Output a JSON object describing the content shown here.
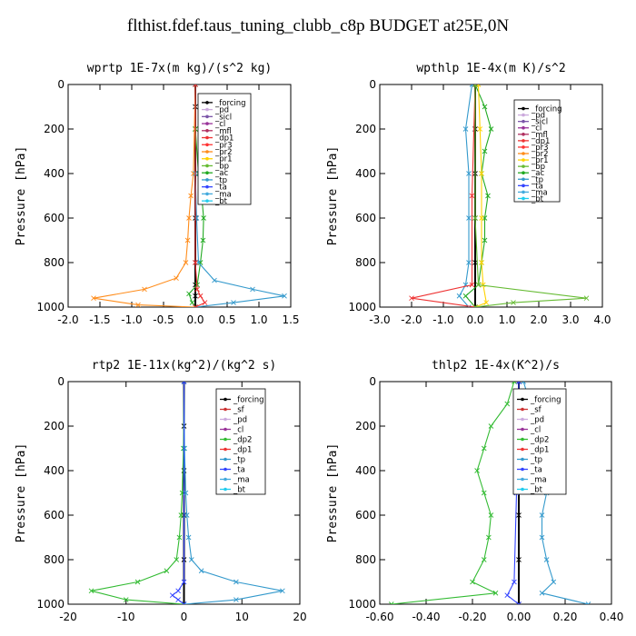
{
  "suptitle": "flthist.fdef.taus_tuning_clubb_c8p  BUDGET at25E,0N",
  "colors": {
    "_forcing": "#000000",
    "_pd": "#ccaadd",
    "_sicl": "#7b55a8",
    "_cl": "#993399",
    "_mfl": "#b03060",
    "_dp1": "#ee3333",
    "_dp2": "#33bb33",
    "_pr3": "#ff3333",
    "_pr2": "#ff8c1a",
    "_pr1": "#ffd200",
    "_bp": "#66bb33",
    "_ac": "#22aa22",
    "_tp": "#3399cc",
    "_ta": "#3344ff",
    "_ma": "#44aadd",
    "_bt": "#22ccee",
    "_sf": "#cc3333"
  },
  "chart_data": [
    {
      "type": "line",
      "title": "wprtp  1E-7x(m kg)/(s^2 kg)",
      "ylabel": "Pressure [hPa]",
      "xlim": [
        -2.0,
        1.5
      ],
      "ylim": [
        1000,
        0
      ],
      "xticks": [
        -2.0,
        -1.5,
        -1.0,
        -0.5,
        0.0,
        0.5,
        1.0,
        1.5
      ],
      "xtick_labels": [
        "-2.0",
        "-1.5",
        "-1.0",
        "-0.5",
        "0.0",
        "0.5",
        "1.0",
        "1.5"
      ],
      "yticks": [
        0,
        200,
        400,
        600,
        800,
        1000
      ],
      "ytick_labels": [
        "0",
        "200",
        "400",
        "600",
        "800",
        "1000"
      ],
      "legend": [
        "_forcing",
        "_pd",
        "_sicl",
        "_cl",
        "_mfl",
        "_dp1",
        "_pr3",
        "_pr2",
        "_pr1",
        "_bp",
        "_ac",
        "_tp",
        "_ta",
        "_ma",
        "_bt"
      ],
      "series": [
        {
          "name": "_forcing",
          "y": [
            0,
            100,
            200,
            400,
            600,
            800,
            900,
            950,
            1000
          ],
          "x": [
            0,
            0,
            0,
            0,
            0,
            0,
            0,
            0,
            0
          ]
        },
        {
          "name": "_ac",
          "y": [
            0,
            200,
            400,
            500,
            600,
            700,
            800,
            900,
            940,
            980,
            1000
          ],
          "x": [
            0,
            0,
            0.05,
            0.1,
            0.13,
            0.12,
            0.08,
            0.03,
            -0.1,
            -0.05,
            0
          ]
        },
        {
          "name": "_pr2",
          "y": [
            0,
            400,
            500,
            600,
            700,
            800,
            870,
            920,
            960,
            990,
            1000
          ],
          "x": [
            0,
            -0.03,
            -0.07,
            -0.1,
            -0.12,
            -0.15,
            -0.3,
            -0.8,
            -1.6,
            -0.9,
            0
          ]
        },
        {
          "name": "_tp",
          "y": [
            0,
            400,
            600,
            800,
            880,
            920,
            950,
            980,
            1000
          ],
          "x": [
            0,
            0,
            0.02,
            0.05,
            0.3,
            0.9,
            1.4,
            0.6,
            0
          ]
        },
        {
          "name": "_dp1",
          "y": [
            0,
            800,
            920,
            950,
            980,
            1000
          ],
          "x": [
            0,
            0,
            0.03,
            0.08,
            0.15,
            0
          ]
        }
      ]
    },
    {
      "type": "line",
      "title": "wpthlp  1E-4x(m K)/s^2",
      "ylabel": "Pressure [hPa]",
      "xlim": [
        -3.0,
        4.0
      ],
      "ylim": [
        1000,
        0
      ],
      "xticks": [
        -3.0,
        -2.0,
        -1.0,
        0.0,
        1.0,
        2.0,
        3.0,
        4.0
      ],
      "xtick_labels": [
        "-3.0",
        "-2.0",
        "-1.0",
        "0.0",
        "1.0",
        "2.0",
        "3.0",
        "4.0"
      ],
      "yticks": [
        0,
        200,
        400,
        600,
        800,
        1000
      ],
      "ytick_labels": [
        "0",
        "200",
        "400",
        "600",
        "800",
        "1000"
      ],
      "legend": [
        "_forcing",
        "_pd",
        "_sicl",
        "_cl",
        "_mfl",
        "_dp1",
        "_pr3",
        "_pr2",
        "_pr1",
        "_bp",
        "_ac",
        "_tp",
        "_ta",
        "_ma",
        "_bt"
      ],
      "series": [
        {
          "name": "_forcing",
          "y": [
            0,
            200,
            400,
            600,
            800,
            1000
          ],
          "x": [
            0,
            0,
            0,
            0,
            0,
            0
          ]
        },
        {
          "name": "_ac",
          "y": [
            0,
            100,
            200,
            300,
            400,
            500,
            600,
            700,
            800,
            900,
            950,
            1000
          ],
          "x": [
            0,
            0.3,
            0.5,
            0.3,
            0.2,
            0.4,
            0.3,
            0.3,
            0.2,
            0.1,
            -0.3,
            0
          ]
        },
        {
          "name": "_tp",
          "y": [
            0,
            200,
            400,
            600,
            800,
            900,
            950,
            1000
          ],
          "x": [
            -0.1,
            -0.3,
            -0.2,
            -0.2,
            -0.2,
            -0.3,
            -0.5,
            -0.2
          ]
        },
        {
          "name": "_pr1",
          "y": [
            0,
            200,
            400,
            600,
            800,
            900,
            980,
            1000
          ],
          "x": [
            0.1,
            0.15,
            0.2,
            0.2,
            0.2,
            0.25,
            0.35,
            0
          ]
        },
        {
          "name": "_dp1",
          "y": [
            0,
            500,
            900,
            960,
            1000
          ],
          "x": [
            0,
            -0.1,
            -0.1,
            -2.0,
            0
          ]
        },
        {
          "name": "_bp",
          "y": [
            0,
            600,
            900,
            960,
            980,
            1000
          ],
          "x": [
            0,
            0,
            0.1,
            3.5,
            1.2,
            0
          ]
        }
      ]
    },
    {
      "type": "line",
      "title": "rtp2  1E-11x(kg^2)/(kg^2 s)",
      "ylabel": "Pressure [hPa]",
      "xlim": [
        -20,
        20
      ],
      "ylim": [
        1000,
        0
      ],
      "xticks": [
        -20,
        -10,
        0,
        10,
        20
      ],
      "xtick_labels": [
        "-20",
        "-10",
        "0",
        "10",
        "20"
      ],
      "yticks": [
        0,
        200,
        400,
        600,
        800,
        1000
      ],
      "ytick_labels": [
        "0",
        "200",
        "400",
        "600",
        "800",
        "1000"
      ],
      "legend": [
        "_forcing",
        "_sf",
        "_pd",
        "_cl",
        "_dp2",
        "_dp1",
        "_tp",
        "_ta",
        "_ma",
        "_bt"
      ],
      "series": [
        {
          "name": "_forcing",
          "y": [
            0,
            200,
            400,
            600,
            800,
            1000
          ],
          "x": [
            0,
            0,
            0,
            0,
            0,
            0
          ]
        },
        {
          "name": "_dp2",
          "y": [
            0,
            300,
            500,
            600,
            700,
            800,
            850,
            900,
            940,
            980,
            1000
          ],
          "x": [
            0,
            -0.1,
            -0.3,
            -0.5,
            -0.8,
            -1.3,
            -3,
            -8,
            -16,
            -10,
            0
          ]
        },
        {
          "name": "_tp",
          "y": [
            0,
            300,
            500,
            600,
            700,
            800,
            850,
            900,
            940,
            980,
            1000
          ],
          "x": [
            0,
            0.1,
            0.3,
            0.5,
            0.8,
            1.3,
            3,
            9,
            17,
            9,
            0
          ]
        },
        {
          "name": "_ta",
          "y": [
            0,
            900,
            940,
            960,
            980,
            1000
          ],
          "x": [
            0,
            0,
            -1,
            -2,
            -1,
            0
          ]
        }
      ]
    },
    {
      "type": "line",
      "title": "thlp2  1E-4x(K^2)/s",
      "ylabel": "Pressure [hPa]",
      "xlim": [
        -0.6,
        0.4
      ],
      "ylim": [
        1000,
        0
      ],
      "xticks": [
        -0.6,
        -0.4,
        -0.2,
        0.0,
        0.2,
        0.4
      ],
      "xtick_labels": [
        "-0.60",
        "-0.40",
        "-0.20",
        "0.00",
        "0.20",
        "0.40"
      ],
      "yticks": [
        0,
        200,
        400,
        600,
        800,
        1000
      ],
      "ytick_labels": [
        "0",
        "200",
        "400",
        "600",
        "800",
        "1000"
      ],
      "legend": [
        "_forcing",
        "_sf",
        "_pd",
        "_cl",
        "_dp2",
        "_dp1",
        "_tp",
        "_ta",
        "_ma",
        "_bt"
      ],
      "series": [
        {
          "name": "_forcing",
          "y": [
            0,
            200,
            400,
            600,
            800,
            1000
          ],
          "x": [
            0,
            0,
            0,
            0,
            0,
            0
          ]
        },
        {
          "name": "_dp2",
          "y": [
            0,
            100,
            200,
            300,
            400,
            500,
            600,
            700,
            800,
            900,
            950,
            1000
          ],
          "x": [
            -0.02,
            -0.05,
            -0.12,
            -0.15,
            -0.18,
            -0.15,
            -0.12,
            -0.13,
            -0.15,
            -0.2,
            -0.1,
            -0.55
          ]
        },
        {
          "name": "_tp",
          "y": [
            0,
            100,
            200,
            300,
            400,
            500,
            600,
            700,
            800,
            900,
            950,
            1000
          ],
          "x": [
            0.02,
            0.05,
            0.1,
            0.12,
            0.15,
            0.12,
            0.1,
            0.1,
            0.12,
            0.15,
            0.1,
            0.3
          ]
        },
        {
          "name": "_ta",
          "y": [
            0,
            500,
            900,
            960,
            1000
          ],
          "x": [
            0,
            -0.01,
            -0.02,
            -0.05,
            0
          ]
        }
      ]
    }
  ]
}
